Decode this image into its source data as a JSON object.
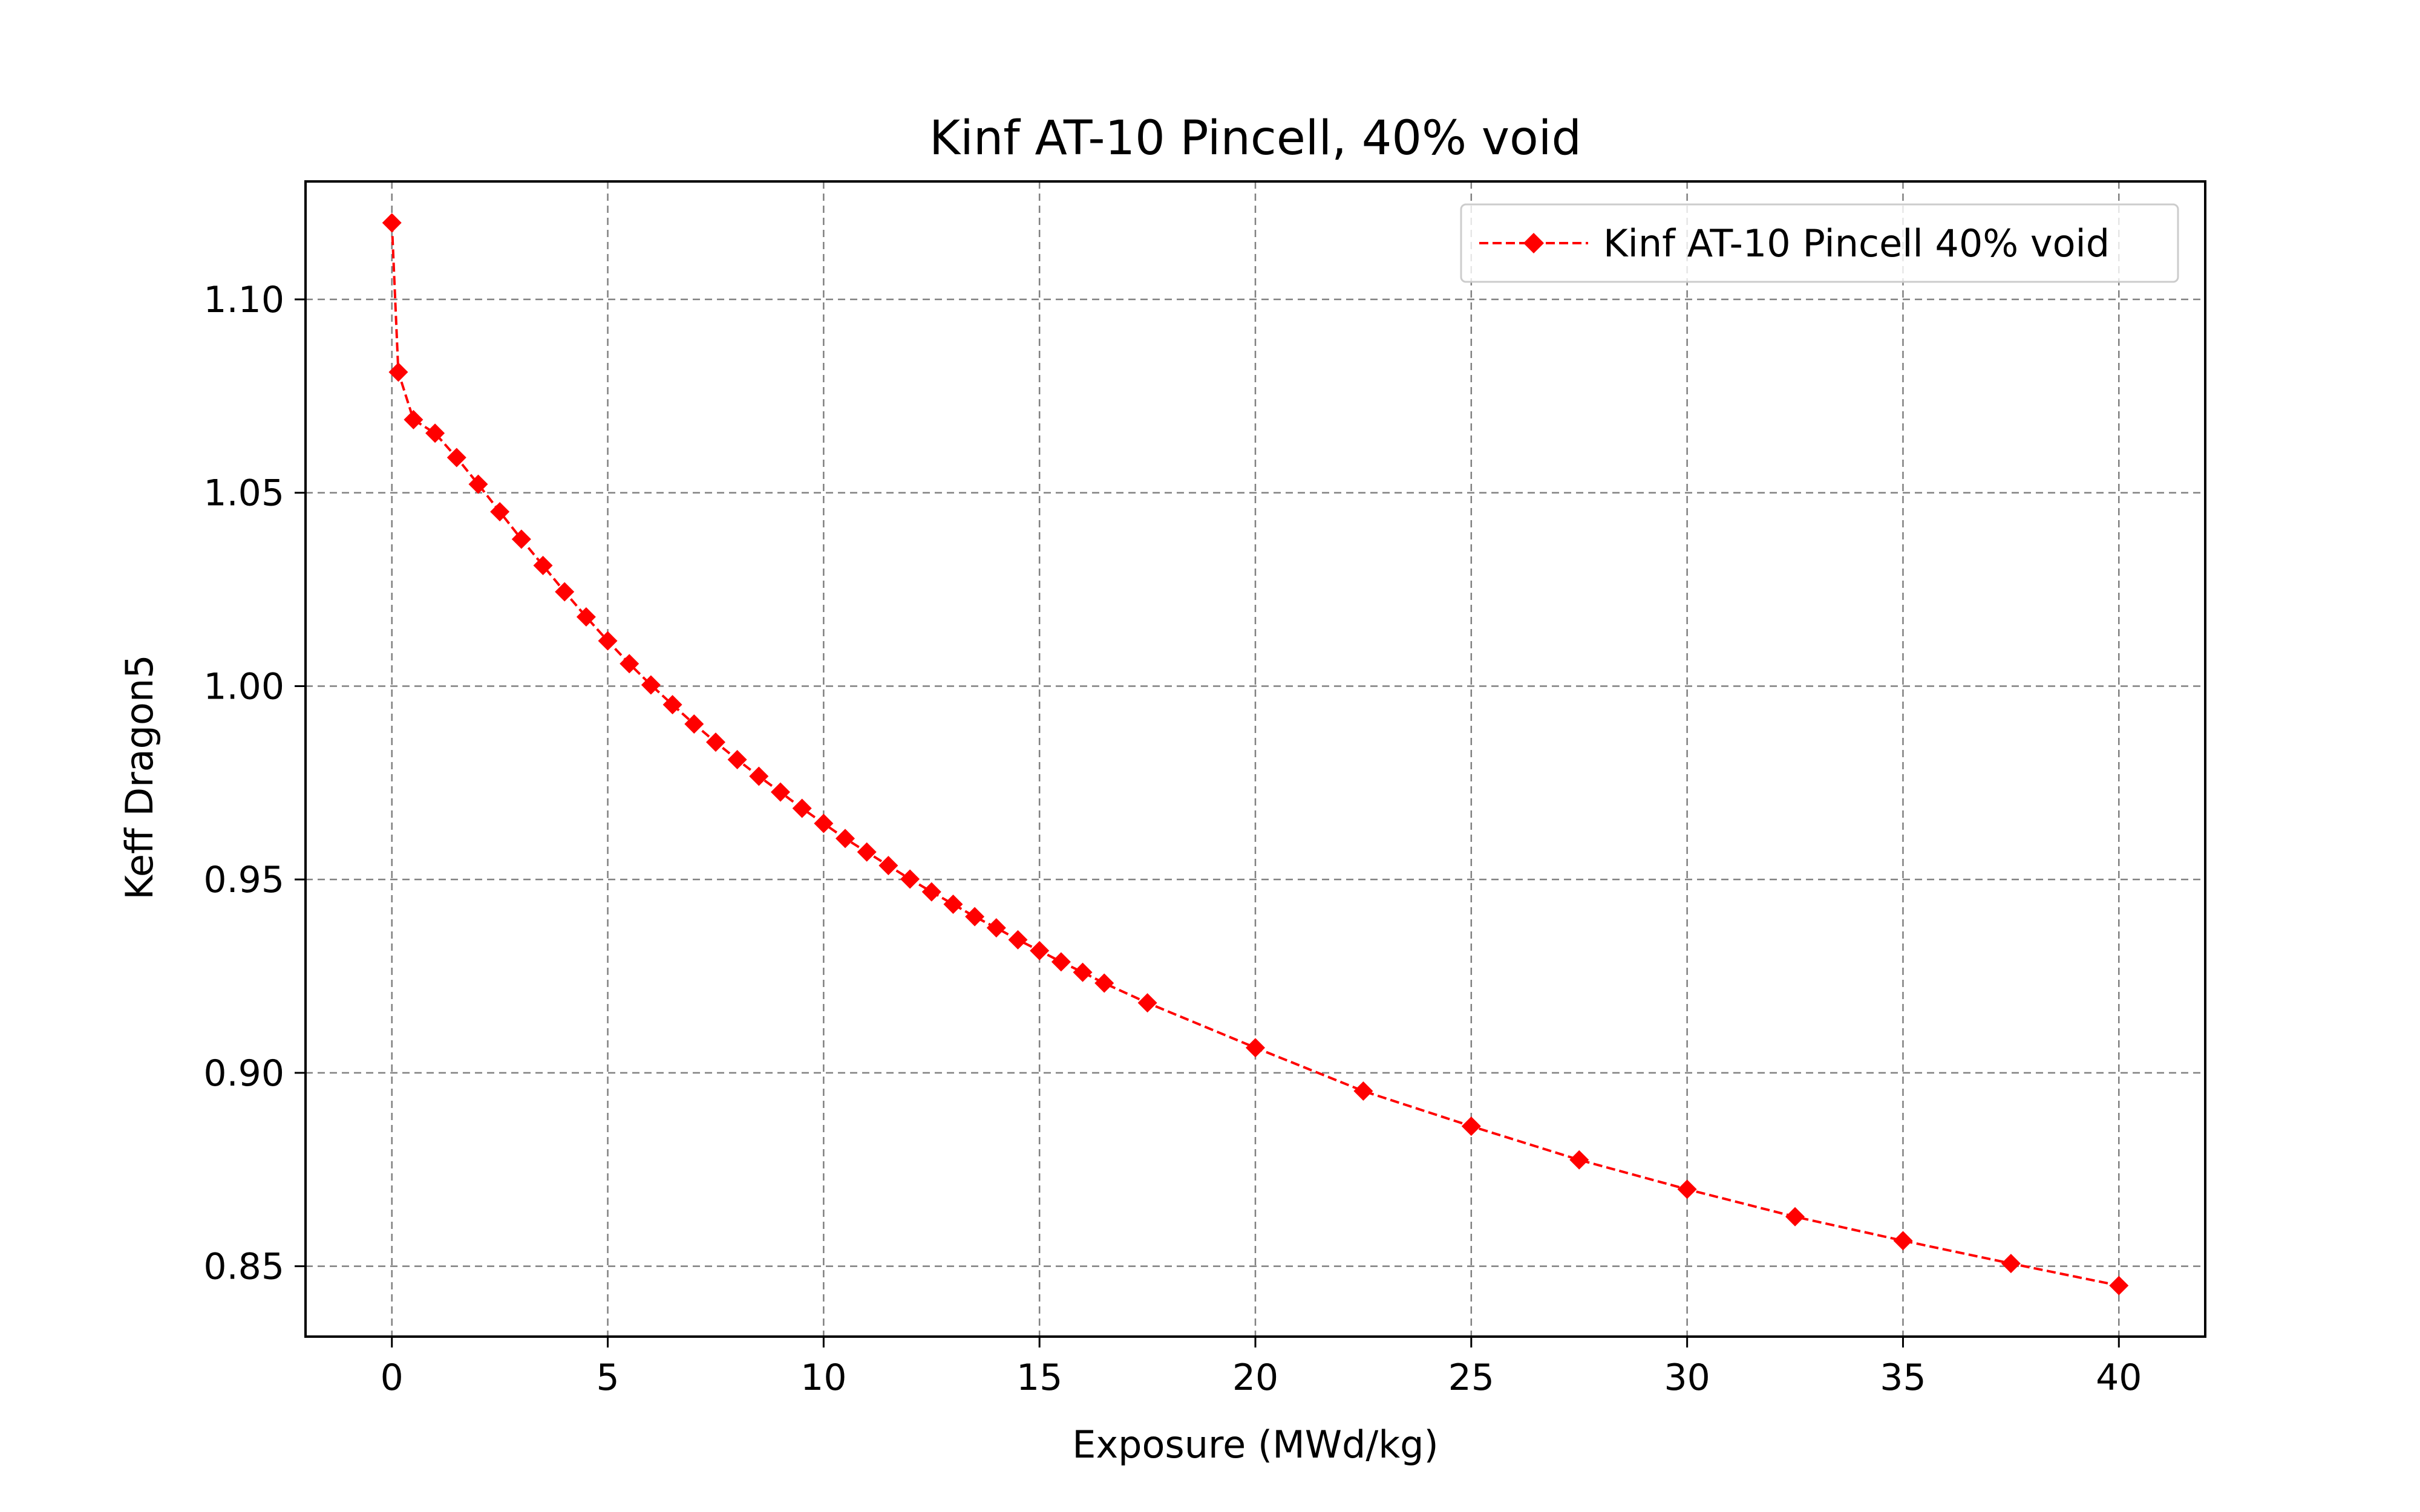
{
  "chart_data": {
    "type": "line",
    "title": "Kinf AT-10 Pincell, 40% void",
    "xlabel": "Exposure (MWd/kg)",
    "ylabel": "Keff Dragon5",
    "xlim": [
      -2,
      42
    ],
    "ylim": [
      0.8318,
      1.1305
    ],
    "xticks": [
      0,
      5,
      10,
      15,
      20,
      25,
      30,
      35,
      40
    ],
    "xtick_labels": [
      "0",
      "5",
      "10",
      "15",
      "20",
      "25",
      "30",
      "35",
      "40"
    ],
    "yticks": [
      0.85,
      0.9,
      0.95,
      1.0,
      1.05,
      1.1
    ],
    "ytick_labels": [
      "0.85",
      "0.90",
      "0.95",
      "1.00",
      "1.05",
      "1.10"
    ],
    "grid": true,
    "legend_position": "top-right",
    "series": [
      {
        "name": "Kinf AT-10 Pincell 40% void",
        "color": "#ff0000",
        "line_style": "dashed",
        "marker": "diamond",
        "x": [
          0,
          0.15,
          0.5,
          1.0,
          1.5,
          2.0,
          2.5,
          3.0,
          3.5,
          4.0,
          4.5,
          5.0,
          5.5,
          6.0,
          6.5,
          7.0,
          7.5,
          8.0,
          8.5,
          9.0,
          9.5,
          10.0,
          10.5,
          11.0,
          11.5,
          12.0,
          12.5,
          13.0,
          13.5,
          14.0,
          14.5,
          15.0,
          15.5,
          16.0,
          16.5,
          17.5,
          20.0,
          22.5,
          25.0,
          27.5,
          30.0,
          32.5,
          35.0,
          37.5,
          40.0
        ],
        "y": [
          1.1198,
          1.0812,
          1.0689,
          1.0654,
          1.0591,
          1.0522,
          1.0451,
          1.038,
          1.0312,
          1.0244,
          1.0179,
          1.0117,
          1.0058,
          1.0003,
          0.9952,
          0.9902,
          0.9855,
          0.981,
          0.9767,
          0.9726,
          0.9684,
          0.9645,
          0.9606,
          0.9571,
          0.9536,
          0.9501,
          0.9468,
          0.9436,
          0.9404,
          0.9375,
          0.9344,
          0.9316,
          0.9287,
          0.926,
          0.9232,
          0.9181,
          0.9065,
          0.8953,
          0.8862,
          0.8775,
          0.8699,
          0.8628,
          0.8566,
          0.8507,
          0.845
        ]
      }
    ]
  }
}
